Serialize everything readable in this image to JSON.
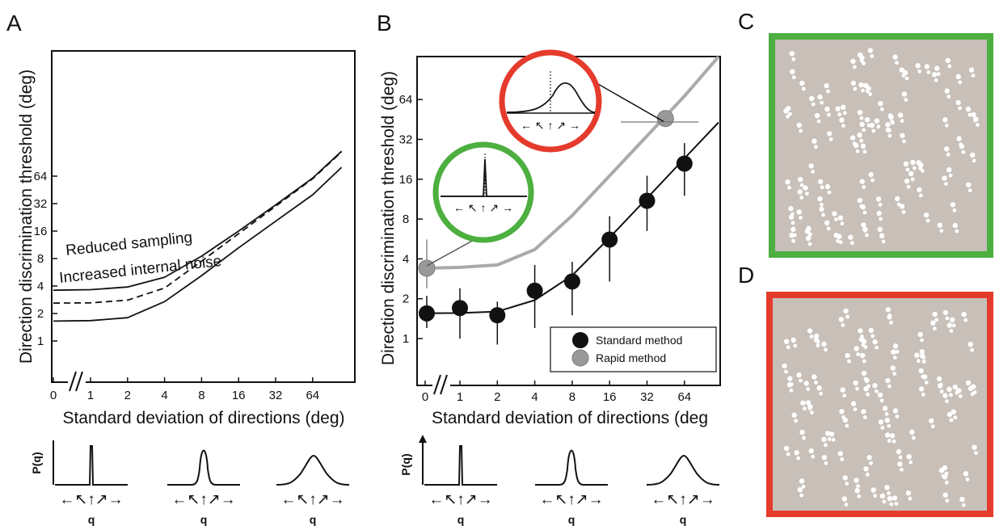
{
  "panels": {
    "a": "A",
    "b": "B",
    "c": "C",
    "d": "D"
  },
  "colors": {
    "easy_frame": "#4caf3f",
    "hard_frame": "#e53b2c",
    "stimulus_bg": "#c7bfb8",
    "rapid_curve": "#aaaaaa",
    "rapid_marker": "#999999",
    "standard_marker": "#111111"
  },
  "chart_data": [
    {
      "panel": "A",
      "type": "line",
      "xlabel": "Standard deviation of directions (deg)",
      "ylabel": "Direction discrimination threshold (deg)",
      "x_scale": "log2 with break after 0",
      "y_scale": "log2",
      "x_ticks": [
        "0",
        "1",
        "2",
        "4",
        "8",
        "16",
        "32",
        "64"
      ],
      "y_ticks": [
        "1",
        "2",
        "4",
        "8",
        "16",
        "32",
        "64"
      ],
      "x": [
        0,
        1,
        2,
        4,
        8,
        16,
        32,
        64,
        128
      ],
      "series": [
        {
          "name": "Reduced sampling",
          "values": [
            3.6,
            3.65,
            3.9,
            5.0,
            8.5,
            16,
            31,
            61,
            120
          ]
        },
        {
          "name": "Increased internal noise",
          "values": [
            2.6,
            2.62,
            2.8,
            3.8,
            7.5,
            15,
            30,
            60,
            118
          ]
        },
        {
          "name": "",
          "values": [
            1.65,
            1.67,
            1.8,
            2.7,
            5.2,
            10.5,
            20.5,
            40,
            80
          ]
        }
      ],
      "annotations": [
        "Reduced sampling",
        "Increased internal noise"
      ],
      "grid": false
    },
    {
      "panel": "B",
      "type": "scatter",
      "xlabel": "Standard deviation of directions (deg",
      "ylabel": "Direction discrimination threshold (deg)",
      "x_scale": "log2 with break after 0",
      "y_scale": "log2",
      "x_ticks": [
        "0",
        "1",
        "2",
        "4",
        "8",
        "16",
        "32",
        "64"
      ],
      "y_ticks": [
        "1",
        "2",
        "4",
        "8",
        "16",
        "32",
        "64"
      ],
      "legend": [
        "Standard method",
        "Rapid method"
      ],
      "legend_position": "bottom-right",
      "series": [
        {
          "name": "Standard method",
          "x": [
            0,
            1,
            2,
            4,
            8,
            16,
            32,
            64
          ],
          "values": [
            1.55,
            1.7,
            1.5,
            2.3,
            2.7,
            5.6,
            11,
            21
          ],
          "err_low": [
            1.2,
            1.0,
            0.9,
            1.2,
            1.5,
            2.7,
            6.5,
            12
          ],
          "err_high": [
            2.1,
            2.4,
            1.9,
            3.6,
            3.8,
            8.4,
            17,
            30
          ]
        },
        {
          "name": "Rapid method",
          "x": [
            0,
            45
          ],
          "values": [
            3.4,
            46
          ]
        }
      ],
      "fit_standard": {
        "x": [
          0,
          1,
          2,
          4,
          8,
          16,
          32,
          64,
          128
        ],
        "values": [
          1.55,
          1.56,
          1.6,
          1.95,
          3.0,
          5.8,
          11.5,
          23,
          43
        ]
      },
      "fit_rapid": {
        "x": [
          0,
          1,
          2,
          4,
          8,
          16,
          32,
          64,
          128
        ],
        "values": [
          3.4,
          3.45,
          3.6,
          4.7,
          8.5,
          17,
          34,
          68,
          135
        ]
      },
      "grid": false
    }
  ],
  "distributions": {
    "ylabel": "P(q)",
    "xlabel": "q",
    "widths": [
      "narrow",
      "medium",
      "wide"
    ]
  }
}
